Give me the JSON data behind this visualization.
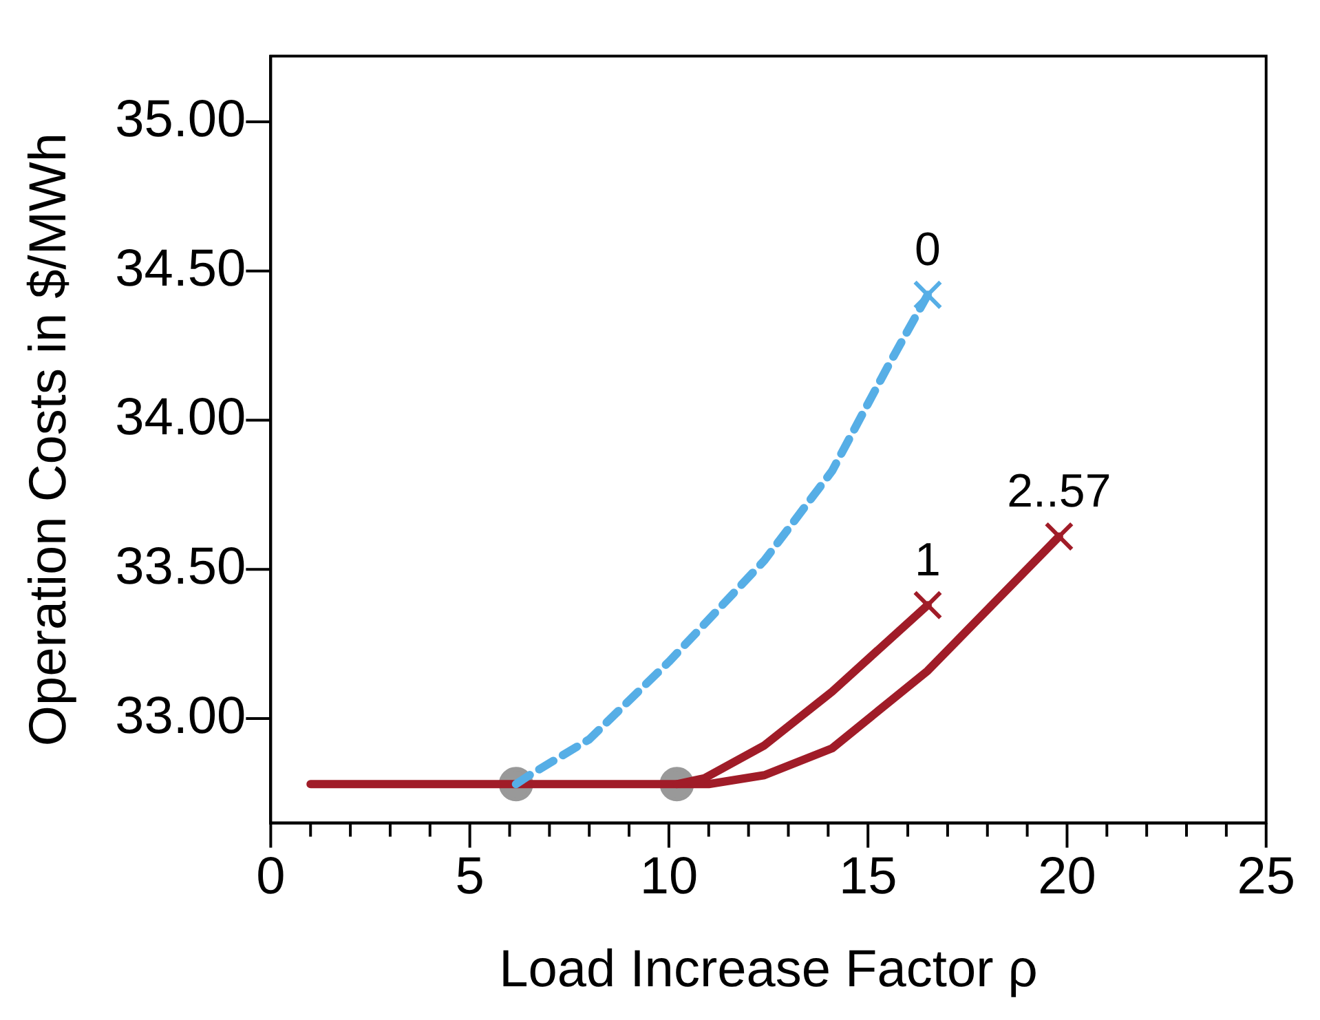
{
  "chart_data": {
    "type": "line",
    "xlabel": "Load Increase Factor ρ",
    "ylabel": "Operation Costs in $/MWh",
    "xlim": [
      0,
      25
    ],
    "ylim": [
      32.65,
      35.22
    ],
    "xticks": [
      0,
      {
        "value": 1,
        "label": null
      },
      {
        "value": 2,
        "label": null
      },
      {
        "value": 3,
        "label": null
      },
      {
        "value": 4,
        "label": null
      },
      5,
      {
        "value": 6,
        "label": null
      },
      {
        "value": 7,
        "label": null
      },
      {
        "value": 8,
        "label": null
      },
      {
        "value": 9,
        "label": null
      },
      10,
      {
        "value": 11,
        "label": null
      },
      {
        "value": 12,
        "label": null
      },
      {
        "value": 13,
        "label": null
      },
      {
        "value": 14,
        "label": null
      },
      15,
      {
        "value": 16,
        "label": null
      },
      {
        "value": 17,
        "label": null
      },
      {
        "value": 18,
        "label": null
      },
      {
        "value": 19,
        "label": null
      },
      20,
      {
        "value": 21,
        "label": null
      },
      {
        "value": 22,
        "label": null
      },
      {
        "value": 23,
        "label": null
      },
      {
        "value": 24,
        "label": null
      },
      25
    ],
    "yticks": [
      {
        "value": 33,
        "label": "33.00"
      },
      {
        "value": 33.5,
        "label": "33.50"
      },
      {
        "value": 34,
        "label": "34.00"
      },
      {
        "value": 34.5,
        "label": "34.50"
      },
      {
        "value": 35,
        "label": "35.00"
      }
    ],
    "grid": false,
    "legend": false,
    "marker": "none",
    "series": [
      {
        "name": "0",
        "color": "#56aee6",
        "line_style": "dashed",
        "x": [
          6.16,
          6.5,
          8.0,
          10.0,
          12.4,
          14.1,
          15.5,
          16.5
        ],
        "values": [
          32.78,
          32.81,
          32.93,
          33.19,
          33.53,
          33.83,
          34.18,
          34.42
        ]
      },
      {
        "name": "1",
        "color": "#a01c28",
        "line_style": "solid",
        "x": [
          10.2,
          10.9,
          12.4,
          14.1,
          16.5
        ],
        "values": [
          32.78,
          32.8,
          32.91,
          33.09,
          33.38
        ]
      },
      {
        "name": "2..57",
        "color": "#a01c28",
        "line_style": "solid",
        "x": [
          1,
          11.0,
          12.4,
          14.1,
          16.5,
          19.8
        ],
        "values": [
          32.78,
          32.78,
          32.81,
          32.9,
          33.16,
          33.61
        ]
      },
      {
        "type": "scatter",
        "marker": "cross",
        "color": "#56aee6",
        "x": [
          16.5
        ],
        "values": [
          34.42
        ]
      },
      {
        "type": "scatter",
        "marker": "cross",
        "color": "#a01c28",
        "x": [
          16.5,
          19.8
        ],
        "values": [
          33.38,
          33.61
        ]
      },
      {
        "type": "scatter",
        "marker": "circle",
        "color": "#999999",
        "x": [
          6.16,
          10.2
        ],
        "values": [
          32.78,
          32.78
        ]
      }
    ]
  }
}
